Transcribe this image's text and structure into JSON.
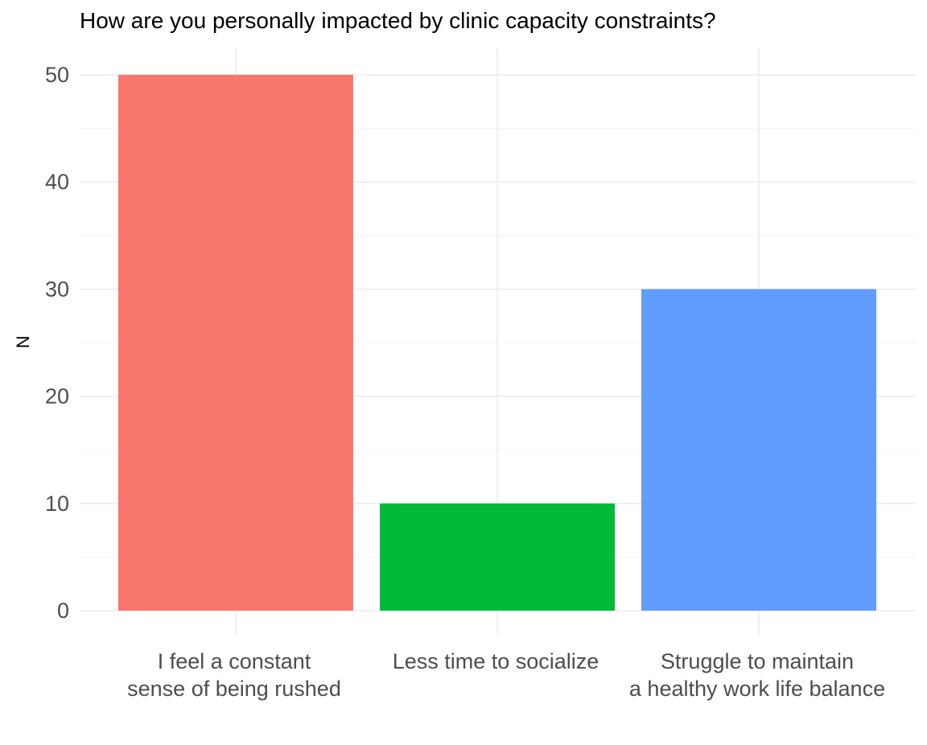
{
  "chart_data": {
    "type": "bar",
    "title": "How are you personally impacted by clinic capacity constraints?",
    "xlabel": "",
    "ylabel": "N",
    "categories": [
      "I feel a constant\nsense of being rushed",
      "Less time to socialize",
      "Struggle to maintain\na healthy work life balance"
    ],
    "values": [
      50,
      10,
      30
    ],
    "colors": [
      "#F8766D",
      "#00BA38",
      "#619CFF"
    ],
    "ylim": [
      0,
      50
    ],
    "yticks": [
      0,
      10,
      20,
      30,
      40,
      50
    ],
    "grid": true,
    "legend": "none"
  }
}
